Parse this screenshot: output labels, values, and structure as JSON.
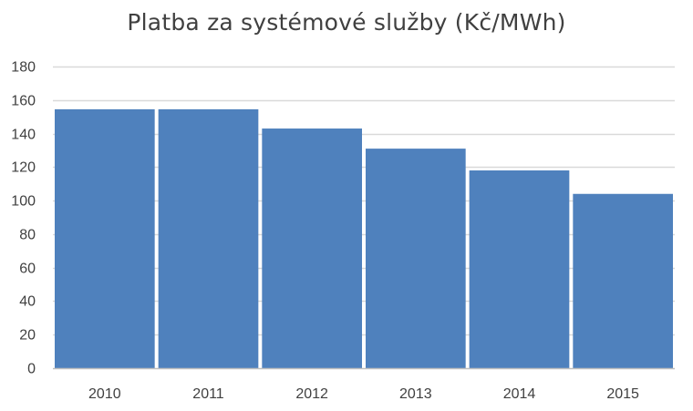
{
  "chart_data": {
    "type": "bar",
    "title": "Platba za systémové služby (Kč/MWh)",
    "xlabel": "",
    "ylabel": "",
    "categories": [
      "2010",
      "2011",
      "2012",
      "2013",
      "2014",
      "2015"
    ],
    "values": [
      154.5,
      154.5,
      143,
      131,
      118,
      104
    ],
    "ylim": [
      0,
      180
    ],
    "yticks": [
      0,
      20,
      40,
      60,
      80,
      100,
      120,
      140,
      160,
      180
    ],
    "ytick_labels": [
      "0",
      "20",
      "40",
      "60",
      "80",
      "100",
      "120",
      "140",
      "160",
      "180"
    ],
    "grid": true,
    "legend": "none",
    "colors": {
      "bar": "#4F81BD",
      "grid": "#D9D9D9",
      "axis": "#BFBFBF",
      "text": "#404040"
    }
  }
}
